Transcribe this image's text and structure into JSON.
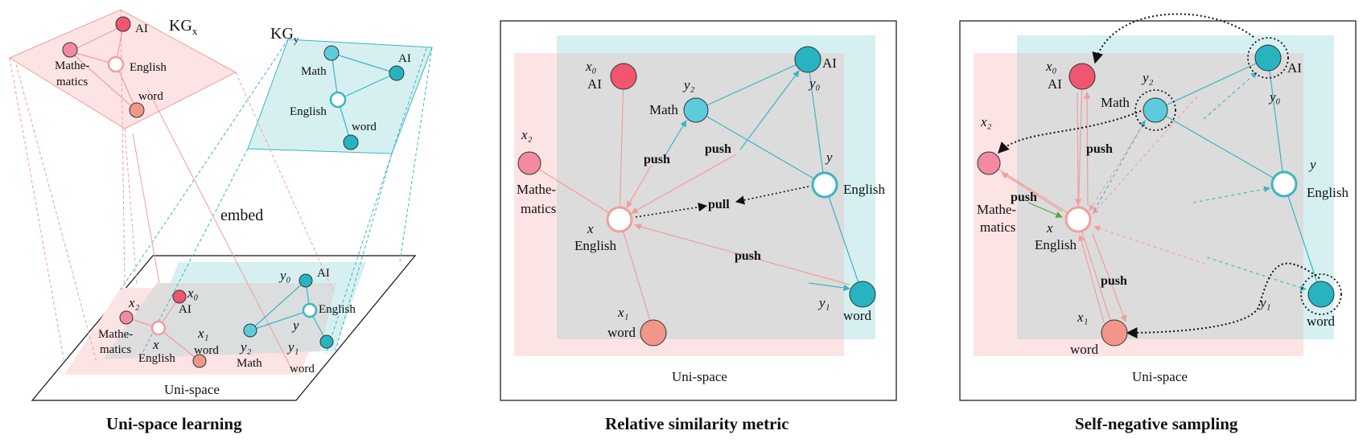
{
  "colors": {
    "pink_fill": "#fde4e4",
    "teal_fill": "#d6f0f1",
    "overlap_fill": "#dcdcdc",
    "node_ai_x": "#f0566f",
    "node_math_x": "#f38aa0",
    "node_word_x": "#f2958a",
    "node_teal_light": "#5cccdc",
    "node_teal_dark": "#27b4c0",
    "edge_pink": "#f29d9d",
    "edge_teal": "#3bb5c2",
    "edge_green": "#5aa64a"
  },
  "panel1": {
    "caption": "Uni-space learning",
    "kgx_label": "KG",
    "kgx_sub": "x",
    "kgy_label": "KG",
    "kgy_sub": "y",
    "embed_label": "embed",
    "space_label": "Uni-space",
    "kgx_nodes": {
      "ai": "AI",
      "math": "Mathe-\nmatics",
      "english": "English",
      "word": "word"
    },
    "kgy_nodes": {
      "ai": "AI",
      "math": "Math",
      "english": "English",
      "word": "word"
    },
    "uni_labels": {
      "x0": "x₀",
      "x1": "x₁",
      "x2": "x₂",
      "x": "x",
      "y": "y",
      "y0": "y₀",
      "y1": "y₁",
      "y2": "y₂",
      "ai_x": "AI",
      "ai_y": "AI",
      "math_x": "Mathe-\nmatics",
      "math_y": "Math",
      "english_x": "English",
      "english_y": "English",
      "word_x": "word",
      "word_y": "word"
    }
  },
  "panel2": {
    "caption": "Relative similarity metric",
    "space_label": "Uni-space",
    "labels": {
      "x0": "x₀",
      "x1": "x₁",
      "x2": "x₂",
      "x": "x",
      "y": "y",
      "y0": "y₀",
      "y1": "y₁",
      "y2": "y₂",
      "ai_x": "AI",
      "ai_y": "AI",
      "math_x": "Mathe-\nmatics",
      "math_y": "Math",
      "english_x": "English",
      "english_y": "English",
      "word_x": "word",
      "word_y": "word"
    },
    "push": "push",
    "pull": "pull"
  },
  "panel3": {
    "caption": "Self-negative sampling",
    "space_label": "Uni-space",
    "labels": {
      "x0": "x₀",
      "x1": "x₁",
      "x2": "x₂",
      "x": "x",
      "y": "y",
      "y0": "y₀",
      "y1": "y₁",
      "y2": "y₂",
      "ai_x": "AI",
      "ai_y": "AI",
      "math_x": "Mathe-\nmatics",
      "math_y": "Math",
      "english_x": "English",
      "english_y": "English",
      "word_x": "word",
      "word_y": "word"
    },
    "push": "push"
  }
}
